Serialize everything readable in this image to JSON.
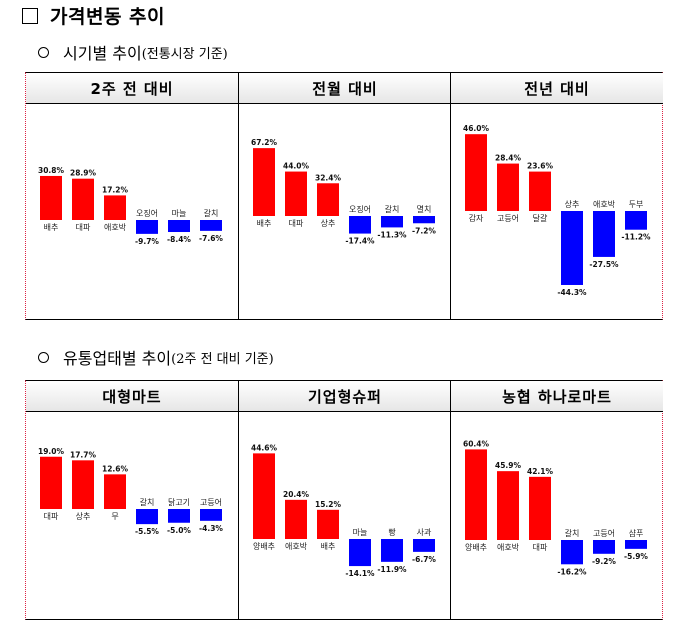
{
  "heading": "가격변동 추이",
  "section1": {
    "title": "시기별 추이",
    "note": "(전통시장 기준)"
  },
  "section2": {
    "title": "유통업태별 추이",
    "note": "(2주 전 대비 기준)"
  },
  "colors": {
    "positive": "#ff0000",
    "negative": "#0000ff"
  },
  "chart_data": [
    {
      "type": "bar",
      "title": "2주 전 대비",
      "categories": [
        "배추",
        "대파",
        "애호박",
        "오징어",
        "마늘",
        "갈치"
      ],
      "values": [
        30.8,
        28.9,
        17.2,
        -9.7,
        -8.4,
        -7.6
      ],
      "labels": [
        "30.8%",
        "28.9%",
        "17.2%",
        "-9.7%",
        "-8.4%",
        "-7.6%"
      ]
    },
    {
      "type": "bar",
      "title": "전월 대비",
      "categories": [
        "배추",
        "대파",
        "상추",
        "오징어",
        "갈치",
        "멸치"
      ],
      "values": [
        67.2,
        44.0,
        32.4,
        -17.4,
        -11.3,
        -7.2
      ],
      "labels": [
        "67.2%",
        "44.0%",
        "32.4%",
        "-17.4%",
        "-11.3%",
        "-7.2%"
      ]
    },
    {
      "type": "bar",
      "title": "전년 대비",
      "categories": [
        "감자",
        "고등어",
        "달걀",
        "상추",
        "애호박",
        "두부"
      ],
      "values": [
        46.0,
        28.4,
        23.6,
        -44.3,
        -27.5,
        -11.2
      ],
      "labels": [
        "46.0%",
        "28.4%",
        "23.6%",
        "-44.3%",
        "-27.5%",
        "-11.2%"
      ]
    },
    {
      "type": "bar",
      "title": "대형마트",
      "categories": [
        "대파",
        "상추",
        "무",
        "갈치",
        "닭고기",
        "고등어"
      ],
      "values": [
        19.0,
        17.7,
        12.6,
        -5.5,
        -5.0,
        -4.3
      ],
      "labels": [
        "19.0%",
        "17.7%",
        "12.6%",
        "-5.5%",
        "-5.0%",
        "-4.3%"
      ]
    },
    {
      "type": "bar",
      "title": "기업형슈퍼",
      "categories": [
        "양배추",
        "애호박",
        "배추",
        "마늘",
        "빵",
        "사과"
      ],
      "values": [
        44.6,
        20.4,
        15.2,
        -14.1,
        -11.9,
        -6.7
      ],
      "labels": [
        "44.6%",
        "20.4%",
        "15.2%",
        "-14.1%",
        "-11.9%",
        "-6.7%"
      ]
    },
    {
      "type": "bar",
      "title": "농협 하나로마트",
      "categories": [
        "양배추",
        "애호박",
        "대파",
        "갈치",
        "고등어",
        "샴푸"
      ],
      "values": [
        60.4,
        45.9,
        42.1,
        -16.2,
        -9.2,
        -5.9
      ],
      "labels": [
        "60.4%",
        "45.9%",
        "42.1%",
        "-16.2%",
        "-9.2%",
        "-5.9%"
      ]
    }
  ]
}
